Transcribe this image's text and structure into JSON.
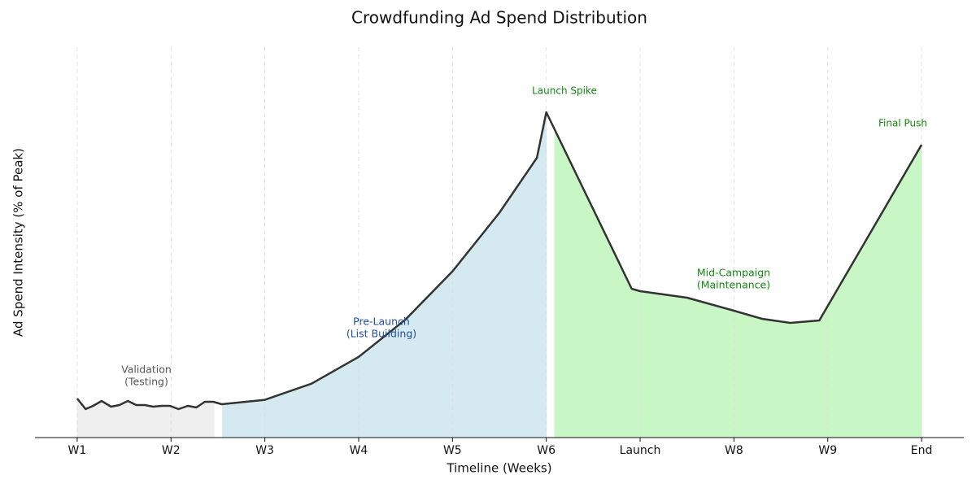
{
  "chart_data": {
    "type": "line",
    "title": "Crowdfunding Ad Spend Distribution",
    "xlabel": "Timeline (Weeks)",
    "ylabel": "Ad Spend Intensity (% of Peak)",
    "xlim": [
      -0.45,
      9.45
    ],
    "ylim": [
      0,
      120
    ],
    "xticks": [
      {
        "value": 0,
        "label": "W1"
      },
      {
        "value": 1,
        "label": "W2"
      },
      {
        "value": 2,
        "label": "W3"
      },
      {
        "value": 3,
        "label": "W4"
      },
      {
        "value": 4,
        "label": "W5"
      },
      {
        "value": 5,
        "label": "W6"
      },
      {
        "value": 6,
        "label": "Launch"
      },
      {
        "value": 7,
        "label": "W8"
      },
      {
        "value": 8,
        "label": "W9"
      },
      {
        "value": 9,
        "label": "End"
      }
    ],
    "grid": true,
    "series": [
      {
        "name": "Ad Spend",
        "color": "#333333",
        "x": [
          0,
          0.09,
          0.17,
          0.26,
          0.36,
          0.45,
          0.54,
          0.63,
          0.72,
          0.81,
          0.9,
          0.99,
          1.08,
          1.18,
          1.27,
          1.36,
          1.45,
          1.54,
          2,
          2.5,
          3,
          3.5,
          4,
          4.5,
          4.9,
          5,
          5.91,
          6,
          6.5,
          7,
          7.3,
          7.6,
          7.91,
          9
        ],
        "values": [
          12,
          8.75,
          9.75,
          11.25,
          9.5,
          10,
          11.25,
          10,
          10,
          9.5,
          9.75,
          9.75,
          8.75,
          9.75,
          9.25,
          11,
          11,
          10.25,
          11.6,
          16.6,
          24.8,
          36.3,
          51.1,
          69.1,
          86,
          100,
          45.75,
          45,
          43,
          39,
          36.5,
          35.25,
          36,
          90
        ]
      }
    ],
    "regions": [
      {
        "x": [
          0,
          1.46
        ],
        "color": "#efefef"
      },
      {
        "x": [
          1.55,
          5
        ],
        "color": "#d4eaf0"
      },
      {
        "x": [
          5.09,
          9
        ],
        "color": "#c8f7c5"
      }
    ],
    "annotations": [
      {
        "lines": [
          "Validation",
          "(Testing)"
        ],
        "color": "#555555"
      },
      {
        "lines": [
          "Pre-Launch",
          "(List Building)"
        ],
        "color": "#1f4e99"
      },
      {
        "lines": [
          "Launch Spike"
        ],
        "color": "#118811"
      },
      {
        "lines": [
          "Mid-Campaign",
          "(Maintenance)"
        ],
        "color": "#118811"
      },
      {
        "lines": [
          "Final Push"
        ],
        "color": "#118811"
      }
    ]
  }
}
